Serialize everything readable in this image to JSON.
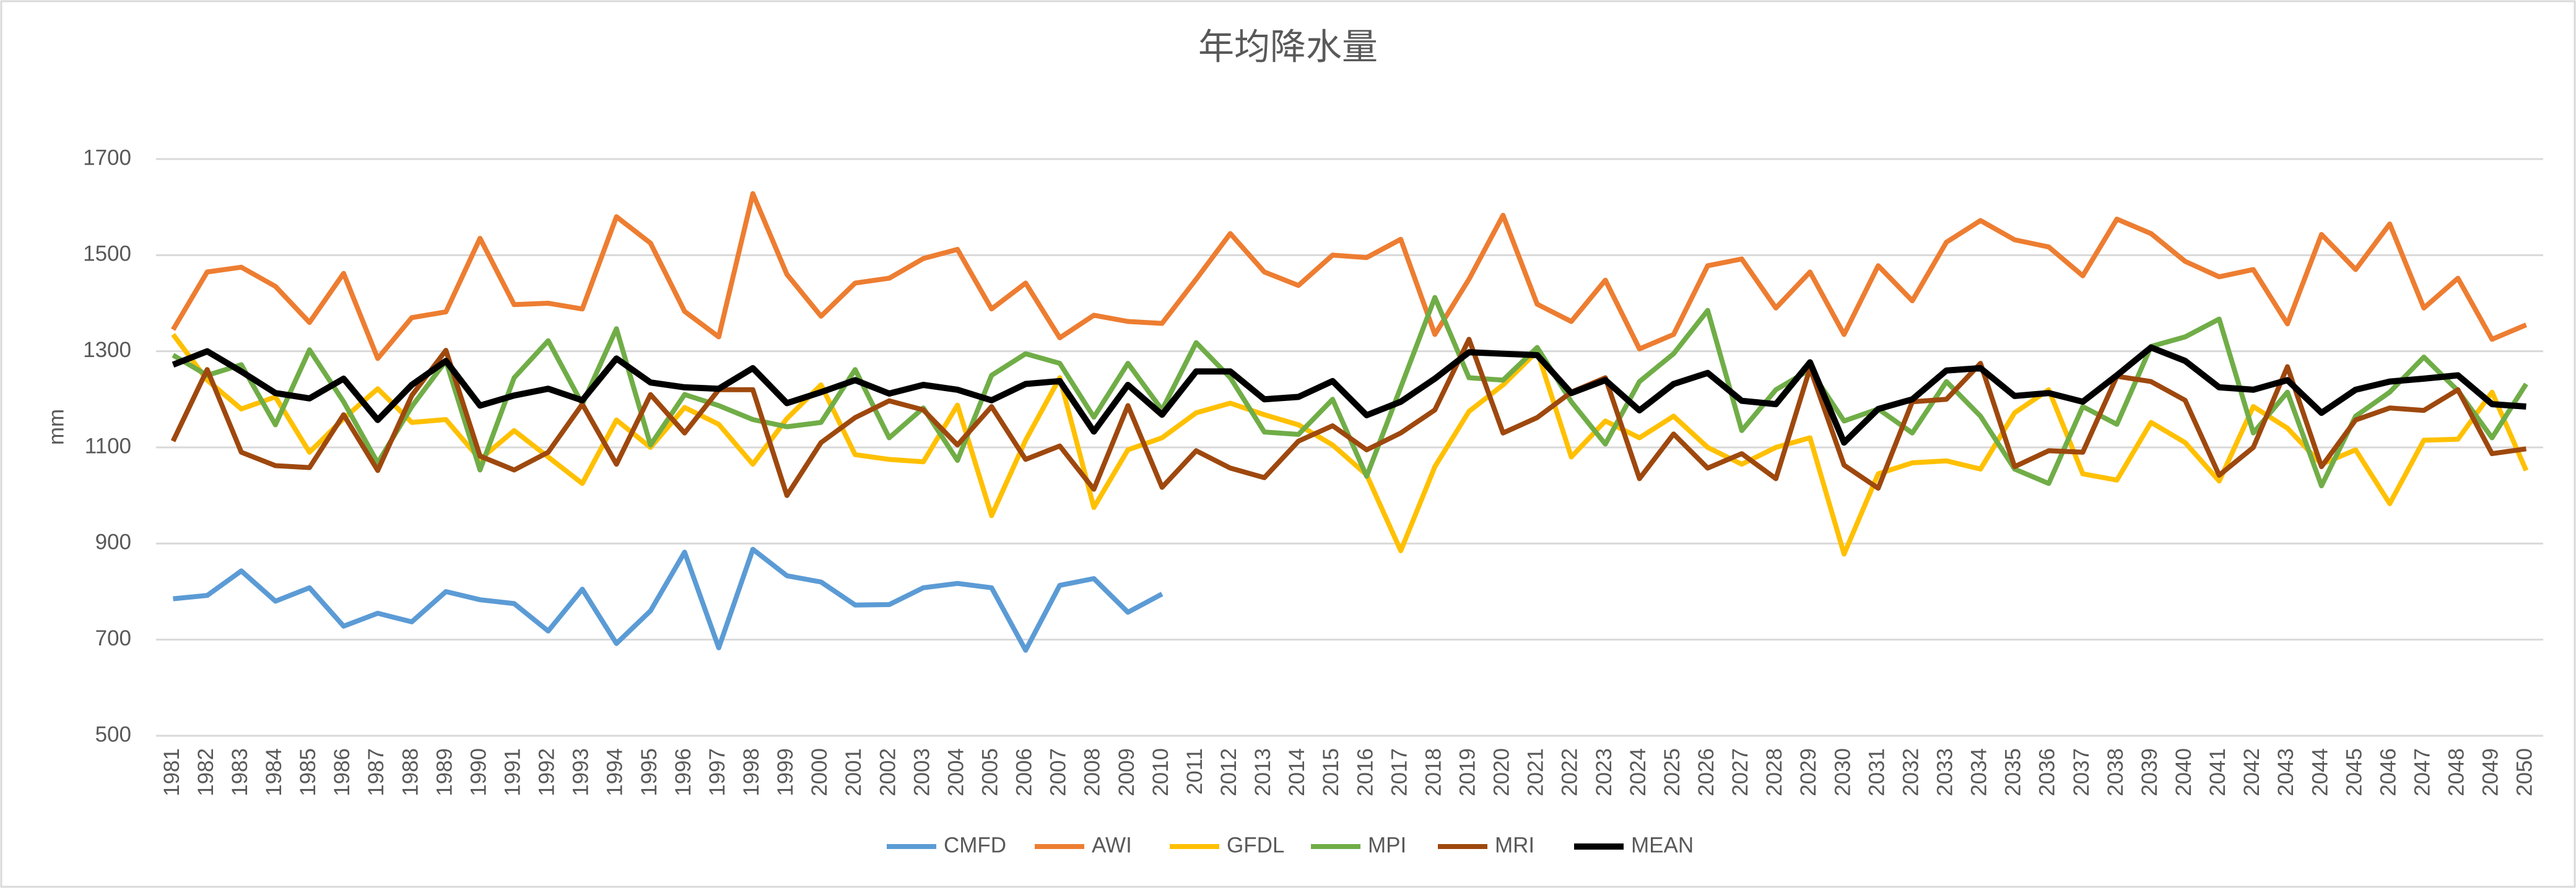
{
  "chart_data": {
    "type": "line",
    "title": "年均降水量",
    "ylabel": "mm",
    "categories": [
      "1981",
      "1982",
      "1983",
      "1984",
      "1985",
      "1986",
      "1987",
      "1988",
      "1989",
      "1990",
      "1991",
      "1992",
      "1993",
      "1994",
      "1995",
      "1996",
      "1997",
      "1998",
      "1999",
      "2000",
      "2001",
      "2002",
      "2003",
      "2004",
      "2005",
      "2006",
      "2007",
      "2008",
      "2009",
      "2010",
      "2011",
      "2012",
      "2013",
      "2014",
      "2015",
      "2016",
      "2017",
      "2018",
      "2019",
      "2020",
      "2021",
      "2022",
      "2023",
      "2024",
      "2025",
      "2026",
      "2027",
      "2028",
      "2029",
      "2030",
      "2031",
      "2032",
      "2033",
      "2034",
      "2035",
      "2036",
      "2037",
      "2038",
      "2039",
      "2040",
      "2041",
      "2042",
      "2043",
      "2044",
      "2045",
      "2046",
      "2047",
      "2048",
      "2049",
      "2050"
    ],
    "series": [
      {
        "name": "CMFD",
        "color": "#5b9bd5",
        "values": [
          785,
          792,
          843,
          780,
          808,
          728,
          755,
          737,
          800,
          783,
          775,
          718,
          805,
          692,
          760,
          882,
          683,
          888,
          833,
          820,
          772,
          773,
          808,
          817,
          808,
          678,
          813,
          827,
          757,
          795,
          null,
          null,
          null,
          null,
          null,
          null,
          null,
          null,
          null,
          null,
          null,
          null,
          null,
          null,
          null,
          null,
          null,
          null,
          null,
          null,
          null,
          null,
          null,
          null,
          null,
          null,
          null,
          null,
          null,
          null,
          null,
          null,
          null,
          null,
          null,
          null,
          null,
          null,
          null,
          null
        ]
      },
      {
        "name": "AWI",
        "color": "#ed7d31",
        "values": [
          1345,
          1465,
          1475,
          1435,
          1360,
          1462,
          1285,
          1370,
          1382,
          1535,
          1397,
          1400,
          1388,
          1580,
          1525,
          1383,
          1330,
          1628,
          1460,
          1373,
          1442,
          1452,
          1493,
          1512,
          1388,
          1442,
          1328,
          1375,
          1362,
          1358,
          1450,
          1545,
          1465,
          1437,
          1500,
          1495,
          1533,
          1335,
          1450,
          1583,
          1398,
          1362,
          1448,
          1305,
          1335,
          1478,
          1492,
          1390,
          1465,
          1335,
          1478,
          1405,
          1527,
          1572,
          1532,
          1517,
          1457,
          1575,
          1545,
          1487,
          1455,
          1470,
          1357,
          1543,
          1470,
          1565,
          1390,
          1452,
          1325,
          1355
        ]
      },
      {
        "name": "GFDL",
        "color": "#ffc000",
        "values": [
          1335,
          1240,
          1180,
          1205,
          1090,
          1160,
          1222,
          1152,
          1158,
          1075,
          1135,
          1080,
          1025,
          1157,
          1100,
          1183,
          1148,
          1065,
          1160,
          1230,
          1085,
          1075,
          1070,
          1188,
          958,
          1115,
          1245,
          975,
          1095,
          1120,
          1172,
          1192,
          1168,
          1147,
          1105,
          1043,
          885,
          1060,
          1175,
          1230,
          1300,
          1080,
          1155,
          1120,
          1165,
          1100,
          1065,
          1100,
          1120,
          878,
          1045,
          1068,
          1072,
          1055,
          1172,
          1220,
          1045,
          1032,
          1152,
          1110,
          1030,
          1185,
          1140,
          1065,
          1095,
          983,
          1115,
          1117,
          1215,
          1052
        ]
      },
      {
        "name": "MPI",
        "color": "#70ad47",
        "values": [
          1292,
          1250,
          1272,
          1147,
          1303,
          1195,
          1068,
          1185,
          1280,
          1053,
          1245,
          1322,
          1190,
          1347,
          1105,
          1210,
          1187,
          1158,
          1143,
          1152,
          1262,
          1120,
          1182,
          1073,
          1250,
          1295,
          1275,
          1163,
          1275,
          1178,
          1318,
          1245,
          1132,
          1127,
          1200,
          1040,
          1225,
          1412,
          1245,
          1240,
          1308,
          1195,
          1107,
          1237,
          1295,
          1385,
          1135,
          1220,
          1262,
          1155,
          1180,
          1130,
          1237,
          1165,
          1055,
          1025,
          1185,
          1148,
          1310,
          1330,
          1367,
          1130,
          1215,
          1020,
          1165,
          1215,
          1288,
          1218,
          1120,
          1232
        ]
      },
      {
        "name": "MRI",
        "color": "#9e480e",
        "values": [
          1113,
          1262,
          1090,
          1062,
          1058,
          1168,
          1052,
          1208,
          1302,
          1082,
          1053,
          1090,
          1190,
          1065,
          1210,
          1130,
          1220,
          1220,
          1000,
          1110,
          1162,
          1197,
          1178,
          1105,
          1185,
          1075,
          1103,
          1013,
          1187,
          1017,
          1093,
          1057,
          1037,
          1113,
          1145,
          1095,
          1130,
          1178,
          1325,
          1130,
          1162,
          1215,
          1245,
          1035,
          1128,
          1057,
          1087,
          1035,
          1265,
          1063,
          1015,
          1195,
          1200,
          1275,
          1060,
          1093,
          1090,
          1248,
          1237,
          1198,
          1042,
          1100,
          1268,
          1060,
          1157,
          1182,
          1177,
          1220,
          1087,
          1097
        ]
      },
      {
        "name": "MEAN",
        "color": "#000000",
        "values": [
          1272,
          1300,
          1258,
          1213,
          1202,
          1243,
          1157,
          1230,
          1280,
          1187,
          1208,
          1222,
          1198,
          1285,
          1235,
          1225,
          1222,
          1265,
          1192,
          1215,
          1240,
          1212,
          1230,
          1220,
          1198,
          1232,
          1238,
          1133,
          1230,
          1168,
          1258,
          1258,
          1200,
          1205,
          1238,
          1167,
          1195,
          1243,
          1298,
          1295,
          1292,
          1213,
          1240,
          1177,
          1232,
          1255,
          1197,
          1190,
          1277,
          1110,
          1180,
          1200,
          1260,
          1265,
          1207,
          1213,
          1195,
          1250,
          1308,
          1280,
          1225,
          1220,
          1240,
          1172,
          1220,
          1237,
          1243,
          1250,
          1190,
          1185
        ]
      }
    ],
    "ylim": [
      500,
      1700
    ],
    "yticks": [
      500,
      700,
      900,
      1100,
      1300,
      1500,
      1700
    ],
    "grid": true,
    "legend": "bottom"
  }
}
